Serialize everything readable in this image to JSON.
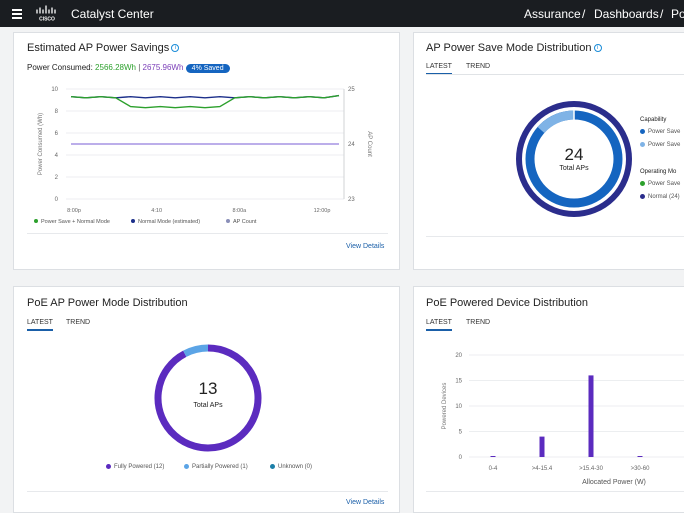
{
  "header": {
    "app_title": "Catalyst Center",
    "breadcrumbs": [
      "Assurance",
      "Dashboards",
      "Po"
    ],
    "separator": "/"
  },
  "savings": {
    "title": "Estimated AP Power Savings",
    "consumed_label": "Power Consumed:",
    "consumed_value": "2566.28Wh",
    "divider": "|",
    "estimated_value": "2675.96Wh",
    "saved_badge": "4% Saved",
    "view_details": "View Details",
    "colors": {
      "save": "#2ca02c",
      "normal": "#1c2f8a",
      "count": "#7a5cd6"
    },
    "chart_data": {
      "type": "line",
      "ylabel": "Power Consumed (Wh)",
      "y2label": "AP Count",
      "ylim": [
        0,
        10
      ],
      "y2lim": [
        23,
        25
      ],
      "yticks": [
        "0",
        "2",
        "4",
        "6",
        "8",
        "10"
      ],
      "y2ticks": [
        "23",
        "24",
        "25"
      ],
      "xticks": [
        "8:00p",
        "4:10",
        "8:00a",
        "12:00p"
      ],
      "series": [
        {
          "name": "Power Save + Normal Mode",
          "values": [
            9.3,
            9.2,
            9.3,
            9.2,
            8.4,
            8.3,
            8.4,
            8.3,
            8.4,
            8.3,
            8.4,
            9.2,
            9.3,
            9.2,
            9.3,
            9.2,
            9.3,
            9.2,
            9.4
          ]
        },
        {
          "name": "Normal Mode (estimated)",
          "values": [
            9.3,
            9.2,
            9.3,
            9.2,
            9.3,
            9.2,
            9.3,
            9.2,
            9.3,
            9.2,
            9.3,
            9.2,
            9.3,
            9.2,
            9.3,
            9.2,
            9.3,
            9.2,
            9.4
          ]
        },
        {
          "name": "AP Count",
          "values": [
            24,
            24,
            24,
            24,
            24,
            24,
            24,
            24,
            24,
            24,
            24,
            24,
            24,
            24,
            24,
            24,
            24,
            24,
            24
          ]
        }
      ],
      "legend": "bottom"
    }
  },
  "psm": {
    "title": "AP Power Save Mode Distribution",
    "tabs": [
      "LATEST",
      "TREND"
    ],
    "center_value": "24",
    "center_label": "Total APs",
    "legend_capability": "Capability",
    "legend_items_cap": [
      "Power Save",
      "Power Save"
    ],
    "legend_operating": "Operating Mo",
    "legend_items_op": [
      "Power Save",
      "Normal (24)"
    ],
    "colors": {
      "dark": "#2b2d8c",
      "blue": "#1565c0",
      "light": "#7fb3e6",
      "green": "#2ca02c"
    }
  },
  "poe_mode": {
    "title": "PoE AP Power Mode Distribution",
    "tabs": [
      "LATEST",
      "TREND"
    ],
    "center_value": "13",
    "center_label": "Total APs",
    "legend": [
      "Fully Powered (12)",
      "Partially Powered (1)",
      "Unknown (0)"
    ],
    "view_details": "View Details",
    "colors": {
      "full": "#5b2bbf",
      "partial": "#5ba4e6",
      "unknown": "#1c7fa8"
    },
    "chart_data": {
      "type": "pie",
      "categories": [
        "Fully Powered",
        "Partially Powered",
        "Unknown"
      ],
      "values": [
        12,
        1,
        0
      ]
    }
  },
  "poe_device": {
    "title": "PoE Powered Device Distribution",
    "tabs": [
      "LATEST",
      "TREND"
    ],
    "chart_data": {
      "type": "bar",
      "categories": [
        "0-4",
        ">4-15.4",
        ">15.4-30",
        ">30-60",
        ">6"
      ],
      "values": [
        0,
        4,
        16,
        0,
        0
      ],
      "ylabel": "Powered Devices",
      "xlabel": "Allocated Power (W)",
      "ylim": [
        0,
        20
      ],
      "yticks": [
        "0",
        "5",
        "10",
        "15",
        "20"
      ]
    },
    "bar_color": "#5b2bbf"
  }
}
